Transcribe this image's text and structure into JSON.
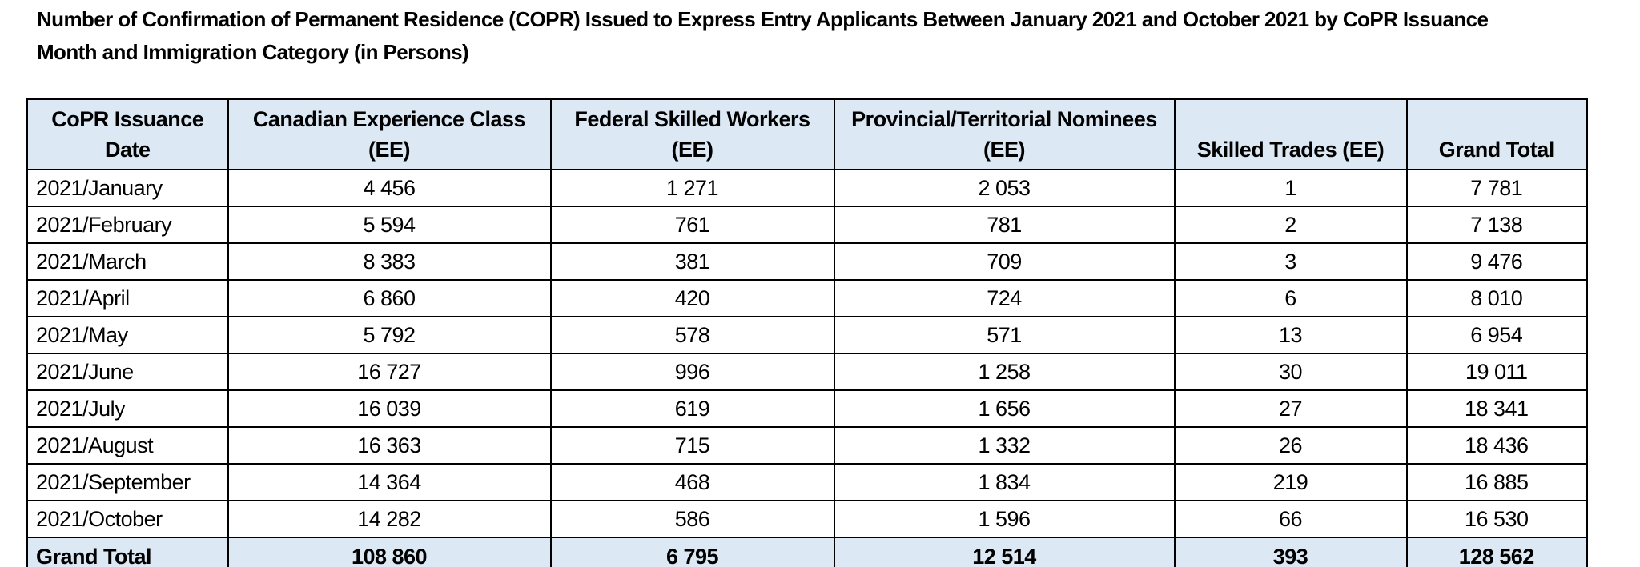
{
  "document": {
    "title": "Number of Confirmation of Permanent Residence (COPR) Issued to Express Entry Applicants Between January 2021 and October 2021 by CoPR Issuance\nMonth and Immigration Category (in Persons)"
  },
  "table": {
    "headers": [
      "CoPR Issuance\nDate",
      "Canadian Experience Class\n(EE)",
      "Federal Skilled Workers\n(EE)",
      "Provincial/Territorial Nominees\n(EE)",
      "Skilled Trades (EE)",
      "Grand Total"
    ],
    "rows": [
      [
        "2021/January",
        "4 456",
        "1 271",
        "2 053",
        "1",
        "7 781"
      ],
      [
        "2021/February",
        "5 594",
        "761",
        "781",
        "2",
        "7 138"
      ],
      [
        "2021/March",
        "8 383",
        "381",
        "709",
        "3",
        "9 476"
      ],
      [
        "2021/April",
        "6 860",
        "420",
        "724",
        "6",
        "8 010"
      ],
      [
        "2021/May",
        "5 792",
        "578",
        "571",
        "13",
        "6 954"
      ],
      [
        "2021/June",
        "16 727",
        "996",
        "1 258",
        "30",
        "19 011"
      ],
      [
        "2021/July",
        "16 039",
        "619",
        "1 656",
        "27",
        "18 341"
      ],
      [
        "2021/August",
        "16 363",
        "715",
        "1 332",
        "26",
        "18 436"
      ],
      [
        "2021/September",
        "14 364",
        "468",
        "1 834",
        "219",
        "16 885"
      ],
      [
        "2021/October",
        "14 282",
        "586",
        "1 596",
        "66",
        "16 530"
      ]
    ],
    "total_row": [
      "Grand Total",
      "108 860",
      "6 795",
      "12 514",
      "393",
      "128 562"
    ],
    "colors": {
      "header_bg": "#dce9f5",
      "border": "#000000",
      "text": "#000000"
    }
  }
}
